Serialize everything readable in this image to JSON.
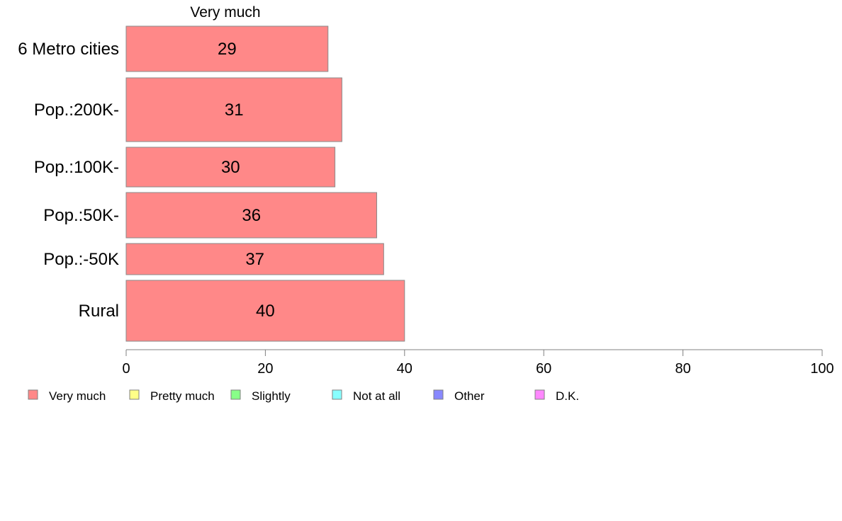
{
  "chart_data": {
    "type": "bar",
    "orientation": "horizontal",
    "stacked": true,
    "panel_header": "Very much",
    "categories": [
      "6 Metro cities",
      "Pop.:200K-",
      "Pop.:100K-",
      "Pop.:50K-",
      "Pop.:-50K",
      "Rural"
    ],
    "series": [
      {
        "name": "Very much",
        "values": [
          29,
          31,
          30,
          36,
          37,
          40
        ],
        "labels": [
          "29",
          "31",
          "30",
          "36",
          "37",
          "40"
        ],
        "color": "#ff8888"
      }
    ],
    "xlim": [
      0,
      100
    ],
    "xticks": [
      0,
      20,
      40,
      60,
      80,
      100
    ],
    "xtick_labels": [
      "0",
      "20",
      "40",
      "60",
      "80",
      "100"
    ],
    "grid": false,
    "legend_position": "bottom-left",
    "legend": [
      {
        "label": "Very much",
        "color": "#ff8888"
      },
      {
        "label": "Pretty much",
        "color": "#ffff88"
      },
      {
        "label": "Slightly",
        "color": "#88ff88"
      },
      {
        "label": "Not at all",
        "color": "#88ffff"
      },
      {
        "label": "Other",
        "color": "#8888ff"
      },
      {
        "label": "D.K.",
        "color": "#ff88ff"
      }
    ]
  }
}
